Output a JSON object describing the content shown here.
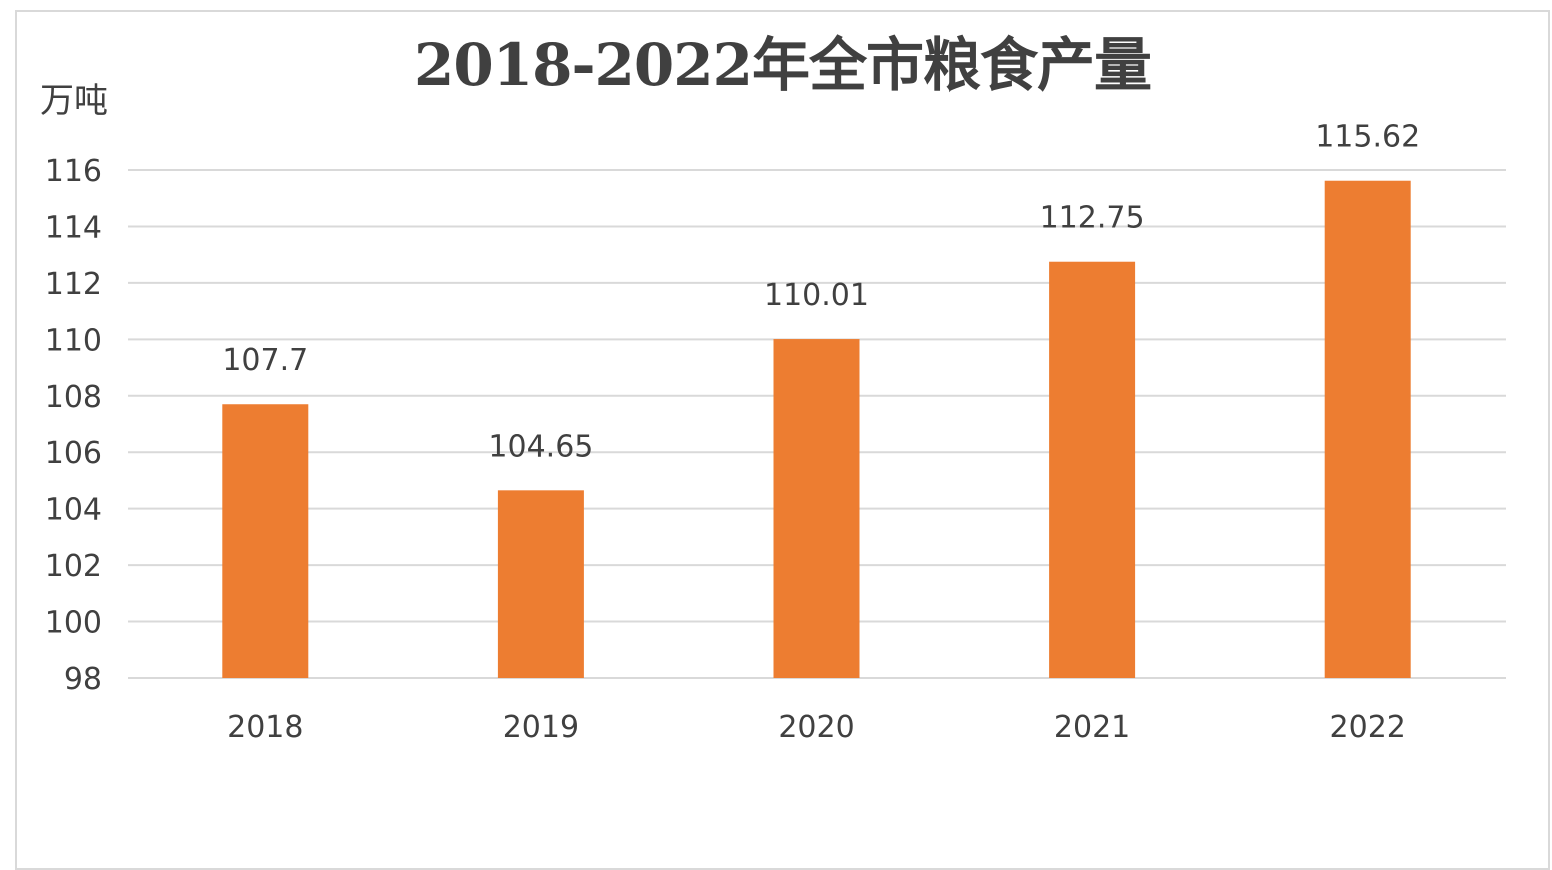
{
  "chart_data": {
    "type": "bar",
    "title": "2018-2022年全市粮食产量",
    "ylabel": "万吨",
    "xlabel": "",
    "categories": [
      "2018",
      "2019",
      "2020",
      "2021",
      "2022"
    ],
    "values": [
      107.7,
      104.65,
      110.01,
      112.75,
      115.62
    ],
    "value_labels": [
      "107.7",
      "104.65",
      "110.01",
      "112.75",
      "115.62"
    ],
    "ylim": [
      98,
      116
    ],
    "yticks": [
      98,
      100,
      102,
      104,
      106,
      108,
      110,
      112,
      114,
      116
    ],
    "grid": true,
    "legend": "none",
    "bar_color": "#ed7d31",
    "grid_color": "#d9d9d9",
    "text_color": "#404040"
  }
}
